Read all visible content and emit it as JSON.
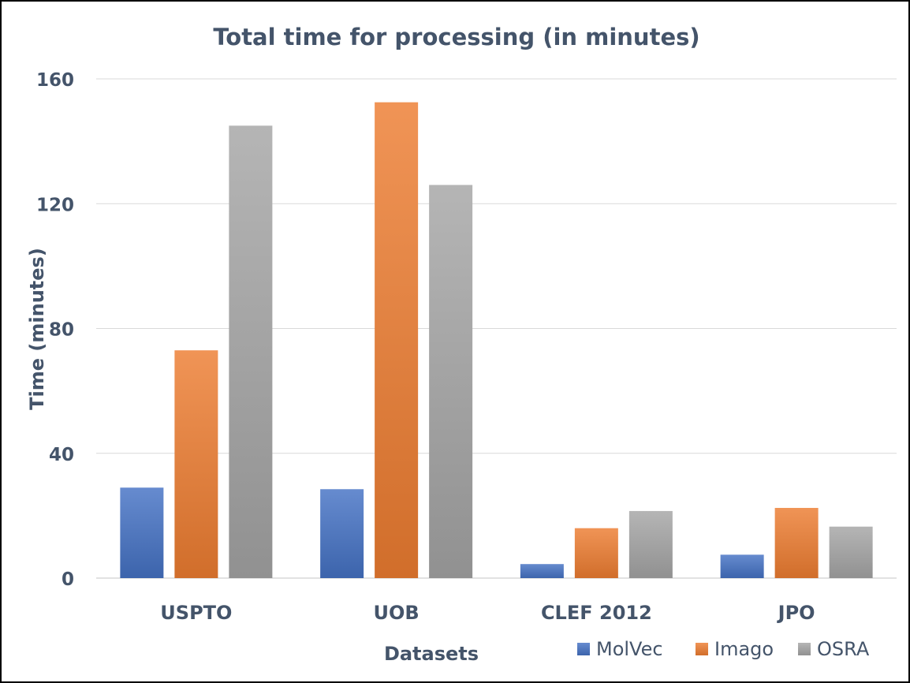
{
  "chart_data": {
    "type": "bar",
    "title": "Total time for processing (in minutes)",
    "xlabel": "Datasets",
    "ylabel": "Time (minutes)",
    "categories": [
      "USPTO",
      "UOB",
      "CLEF 2012",
      "JPO"
    ],
    "ylim": [
      0,
      160
    ],
    "yticks": [
      0,
      40,
      80,
      120,
      160
    ],
    "grid": true,
    "legend_position": "bottom-right",
    "series": [
      {
        "name": "MolVec",
        "color": "#4472C4",
        "values": [
          29,
          28.5,
          4.5,
          7.5
        ]
      },
      {
        "name": "Imago",
        "color": "#ED7D31",
        "values": [
          73,
          152.5,
          16,
          22.5
        ]
      },
      {
        "name": "OSRA",
        "color": "#A5A5A5",
        "values": [
          145,
          126,
          21.5,
          16.5
        ]
      }
    ]
  },
  "colors": {
    "text": "#44546A",
    "grid": "#D9D9D9"
  }
}
